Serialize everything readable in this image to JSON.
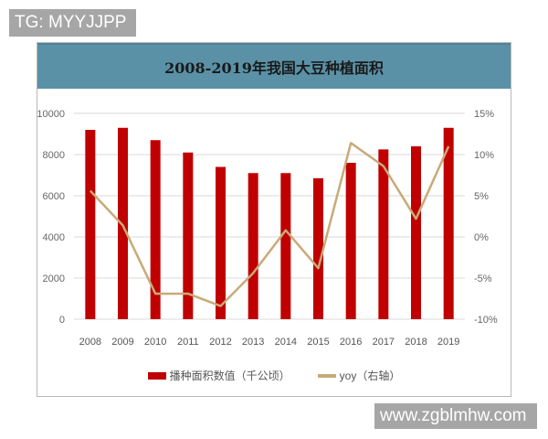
{
  "watermarks": {
    "top": "TG: MYYJJPP",
    "bottom": "www.zgblmhw.com"
  },
  "colors": {
    "title_bar": "#5a91a7",
    "bar": "#c00000",
    "line": "#c8aa78",
    "grid": "#d9d9d9"
  },
  "chart_data": {
    "type": "bar",
    "title": "2008-2019年我国大豆种植面积",
    "categories": [
      "2008",
      "2009",
      "2010",
      "2011",
      "2012",
      "2013",
      "2014",
      "2015",
      "2016",
      "2017",
      "2018",
      "2019"
    ],
    "series": [
      {
        "name": "播种面积数值（千公顷）",
        "type": "bar",
        "axis": "left",
        "values": [
          9200,
          9300,
          8700,
          8100,
          7400,
          7100,
          7100,
          6850,
          7600,
          8250,
          8400,
          9300
        ]
      },
      {
        "name": "yoy（右轴）",
        "type": "line",
        "axis": "right",
        "values": [
          5.6,
          1.4,
          -6.9,
          -6.9,
          -8.4,
          -4.4,
          0.8,
          -3.8,
          11.4,
          8.6,
          2.2,
          11.0
        ]
      }
    ],
    "xlabel": "",
    "ylabel": "",
    "ylim": [
      0,
      10000
    ],
    "y_ticks": [
      "0",
      "2000",
      "4000",
      "6000",
      "8000",
      "10000"
    ],
    "y2lim": [
      -10,
      15
    ],
    "y2_ticks": [
      "-10%",
      "-5%",
      "0%",
      "5%",
      "10%",
      "15%"
    ],
    "grid": true,
    "legend_position": "bottom"
  },
  "legend": {
    "bar_label": "播种面积数值（千公顷）",
    "line_label": "yoy（右轴）"
  }
}
